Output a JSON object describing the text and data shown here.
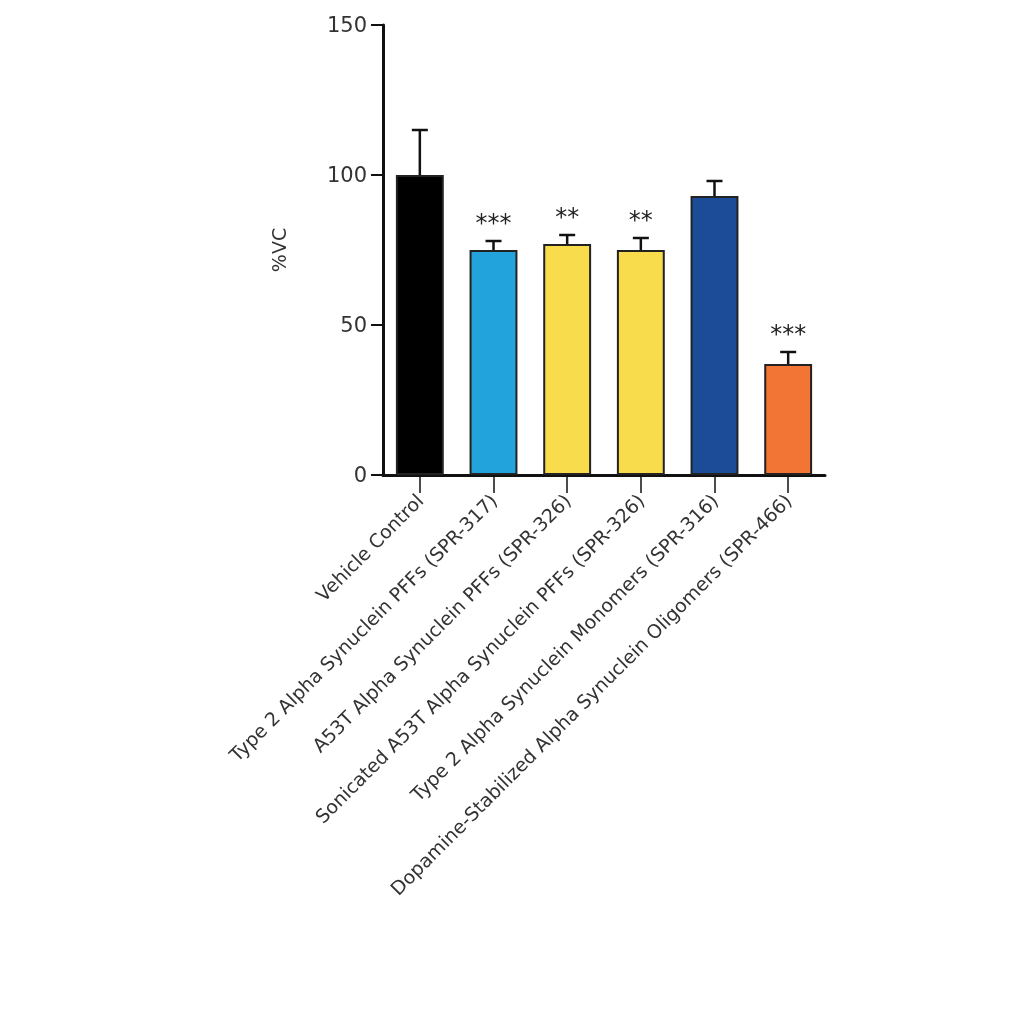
{
  "chart_data": {
    "type": "bar",
    "ylabel": "%VC",
    "categories": [
      "Vehicle Control",
      "Type 2 Alpha Synuclein PFFs (SPR-317)",
      "A53T Alpha Synuclein PFFs (SPR-326)",
      "Sonicated A53T Alpha Synuclein PFFs (SPR-326)",
      "Type 2 Alpha Synuclein Monomers (SPR-316)",
      "Dopamine-Stabilized Alpha Synuclein Oligomers (SPR-466)"
    ],
    "values": [
      100,
      75,
      77,
      75,
      93,
      37
    ],
    "colors": [
      "#000000",
      "#22a3db",
      "#f8dc4b",
      "#f8dc4b",
      "#1c4b97",
      "#f27535"
    ],
    "errors": [
      [
        100,
        115
      ],
      [
        75,
        78
      ],
      [
        77,
        80
      ],
      [
        75,
        79
      ],
      [
        93,
        98
      ],
      [
        37,
        41
      ]
    ],
    "ylim": [
      0,
      150
    ],
    "yticks": [
      0,
      50,
      100,
      150
    ],
    "grid": false,
    "annotations": [
      {
        "text": "***",
        "x": "Type 2 Alpha Synuclein PFFs (SPR-317)",
        "y": 78
      },
      {
        "text": "**",
        "x": "A53T Alpha Synuclein PFFs (SPR-326)",
        "y": 80
      },
      {
        "text": "**",
        "x": "Sonicated A53T Alpha Synuclein PFFs (SPR-326)",
        "y": 79
      },
      {
        "text": "***",
        "x": "Dopamine-Stabilized Alpha Synuclein Oligomers (SPR-466)",
        "y": 41
      }
    ]
  }
}
